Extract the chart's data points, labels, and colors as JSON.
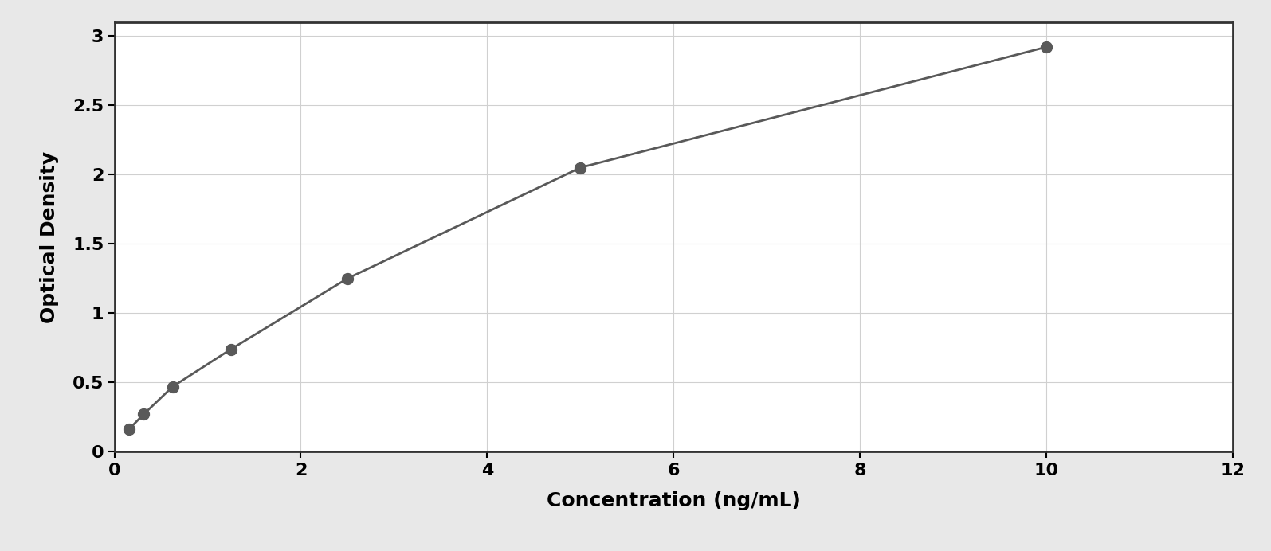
{
  "x_data": [
    0.156,
    0.313,
    0.625,
    1.25,
    2.5,
    5.0,
    10.0
  ],
  "y_data": [
    0.163,
    0.27,
    0.47,
    0.74,
    1.25,
    2.05,
    2.92
  ],
  "xlabel": "Concentration (ng/mL)",
  "ylabel": "Optical Density",
  "xlim": [
    0,
    12
  ],
  "ylim": [
    0,
    3.1
  ],
  "xticks": [
    0,
    2,
    4,
    6,
    8,
    10,
    12
  ],
  "yticks": [
    0,
    0.5,
    1.0,
    1.5,
    2.0,
    2.5,
    3.0
  ],
  "marker_color": "#595959",
  "line_color": "#595959",
  "marker_size": 10,
  "line_width": 2.0,
  "grid_color": "#d0d0d0",
  "background_color": "#ffffff",
  "plot_background": "#ffffff",
  "outer_border_color": "#aaaaaa",
  "spine_color": "#333333",
  "xlabel_fontsize": 18,
  "ylabel_fontsize": 18,
  "tick_fontsize": 16,
  "xlabel_fontweight": "bold",
  "ylabel_fontweight": "bold",
  "tick_fontweight": "bold",
  "curve_xmax": 11.0
}
